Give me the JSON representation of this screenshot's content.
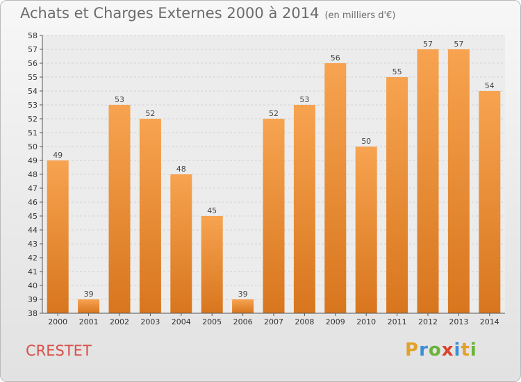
{
  "header": {
    "title": "Achats et Charges Externes 2000 à 2014",
    "subtitle": "(en milliers d'€)"
  },
  "commune": "CRESTET",
  "logo": {
    "text": "Proxiti",
    "letters": [
      {
        "ch": "P",
        "color": "#e3a12b"
      },
      {
        "ch": "r",
        "color": "#3a8fd6"
      },
      {
        "ch": "o",
        "color": "#6bb23b"
      },
      {
        "ch": "x",
        "color": "#d9432d"
      },
      {
        "ch": "i",
        "color": "#3a8fd6"
      },
      {
        "ch": "t",
        "color": "#e3a12b"
      },
      {
        "ch": "i",
        "color": "#6bb23b"
      }
    ]
  },
  "chart_data": {
    "type": "bar",
    "categories": [
      "2000",
      "2001",
      "2002",
      "2003",
      "2004",
      "2005",
      "2006",
      "2007",
      "2008",
      "2009",
      "2010",
      "2011",
      "2012",
      "2013",
      "2014"
    ],
    "values": [
      49,
      39,
      53,
      52,
      48,
      45,
      39,
      52,
      53,
      56,
      50,
      55,
      57,
      57,
      54
    ],
    "ylim": [
      38,
      58
    ],
    "yticks": [
      38,
      39,
      40,
      41,
      42,
      43,
      44,
      45,
      46,
      47,
      48,
      49,
      50,
      51,
      52,
      53,
      54,
      55,
      56,
      57,
      58
    ],
    "bar_color_top": "#f7a350",
    "bar_color_bottom": "#d8761e",
    "grid": true
  }
}
